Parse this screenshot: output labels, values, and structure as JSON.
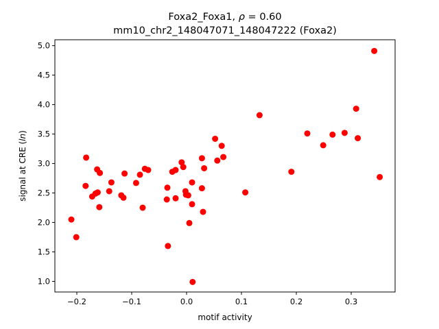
{
  "chart_data": {
    "type": "scatter",
    "title": {
      "line1_prefix": "Foxa2_Foxa1, ",
      "line1_rho": "ρ",
      "line1_suffix": " = 0.60",
      "line2": "mm10_chr2_148047071_148047222 (Foxa2)"
    },
    "xlabel": "motif activity",
    "ylabel_prefix": "signal at CRE (",
    "ylabel_ln": "ln",
    "ylabel_suffix": ")",
    "xlim": [
      -0.24,
      0.38
    ],
    "ylim": [
      0.82,
      5.1
    ],
    "xticks": [
      {
        "value": -0.2,
        "label": "−0.2"
      },
      {
        "value": -0.1,
        "label": "−0.1"
      },
      {
        "value": 0.0,
        "label": "0.0"
      },
      {
        "value": 0.1,
        "label": "0.1"
      },
      {
        "value": 0.2,
        "label": "0.2"
      },
      {
        "value": 0.3,
        "label": "0.3"
      }
    ],
    "yticks": [
      {
        "value": 1.0,
        "label": "1.0"
      },
      {
        "value": 1.5,
        "label": "1.5"
      },
      {
        "value": 2.0,
        "label": "2.0"
      },
      {
        "value": 2.5,
        "label": "2.5"
      },
      {
        "value": 3.0,
        "label": "3.0"
      },
      {
        "value": 3.5,
        "label": "3.5"
      },
      {
        "value": 4.0,
        "label": "4.0"
      },
      {
        "value": 4.5,
        "label": "4.5"
      },
      {
        "value": 5.0,
        "label": "5.0"
      }
    ],
    "grid": false,
    "marker_color": "#ff0000",
    "points": [
      {
        "x": -0.21,
        "y": 2.05
      },
      {
        "x": -0.201,
        "y": 1.75
      },
      {
        "x": -0.183,
        "y": 3.1
      },
      {
        "x": -0.184,
        "y": 2.62
      },
      {
        "x": -0.172,
        "y": 2.44
      },
      {
        "x": -0.166,
        "y": 2.49
      },
      {
        "x": -0.162,
        "y": 2.51
      },
      {
        "x": -0.163,
        "y": 2.9
      },
      {
        "x": -0.158,
        "y": 2.84
      },
      {
        "x": -0.159,
        "y": 2.26
      },
      {
        "x": -0.141,
        "y": 2.53
      },
      {
        "x": -0.137,
        "y": 2.68
      },
      {
        "x": -0.119,
        "y": 2.46
      },
      {
        "x": -0.115,
        "y": 2.42
      },
      {
        "x": -0.113,
        "y": 2.83
      },
      {
        "x": -0.092,
        "y": 2.67
      },
      {
        "x": -0.085,
        "y": 2.81
      },
      {
        "x": -0.08,
        "y": 2.25
      },
      {
        "x": -0.076,
        "y": 2.91
      },
      {
        "x": -0.07,
        "y": 2.89
      },
      {
        "x": -0.036,
        "y": 2.39
      },
      {
        "x": -0.035,
        "y": 2.59
      },
      {
        "x": -0.034,
        "y": 1.6
      },
      {
        "x": -0.026,
        "y": 2.86
      },
      {
        "x": -0.02,
        "y": 2.89
      },
      {
        "x": -0.02,
        "y": 2.41
      },
      {
        "x": -0.009,
        "y": 3.02
      },
      {
        "x": -0.006,
        "y": 2.94
      },
      {
        "x": -0.002,
        "y": 2.53
      },
      {
        "x": -0.001,
        "y": 2.47
      },
      {
        "x": 0.003,
        "y": 2.46
      },
      {
        "x": 0.005,
        "y": 1.99
      },
      {
        "x": 0.01,
        "y": 2.68
      },
      {
        "x": 0.01,
        "y": 2.31
      },
      {
        "x": 0.011,
        "y": 0.99
      },
      {
        "x": 0.028,
        "y": 3.09
      },
      {
        "x": 0.028,
        "y": 2.58
      },
      {
        "x": 0.03,
        "y": 2.18
      },
      {
        "x": 0.032,
        "y": 2.92
      },
      {
        "x": 0.052,
        "y": 3.42
      },
      {
        "x": 0.056,
        "y": 3.05
      },
      {
        "x": 0.064,
        "y": 3.3
      },
      {
        "x": 0.067,
        "y": 3.11
      },
      {
        "x": 0.107,
        "y": 2.51
      },
      {
        "x": 0.133,
        "y": 3.82
      },
      {
        "x": 0.191,
        "y": 2.86
      },
      {
        "x": 0.22,
        "y": 3.51
      },
      {
        "x": 0.249,
        "y": 3.31
      },
      {
        "x": 0.266,
        "y": 3.49
      },
      {
        "x": 0.288,
        "y": 3.52
      },
      {
        "x": 0.309,
        "y": 3.93
      },
      {
        "x": 0.312,
        "y": 3.43
      },
      {
        "x": 0.342,
        "y": 4.91
      },
      {
        "x": 0.352,
        "y": 2.77
      }
    ]
  }
}
